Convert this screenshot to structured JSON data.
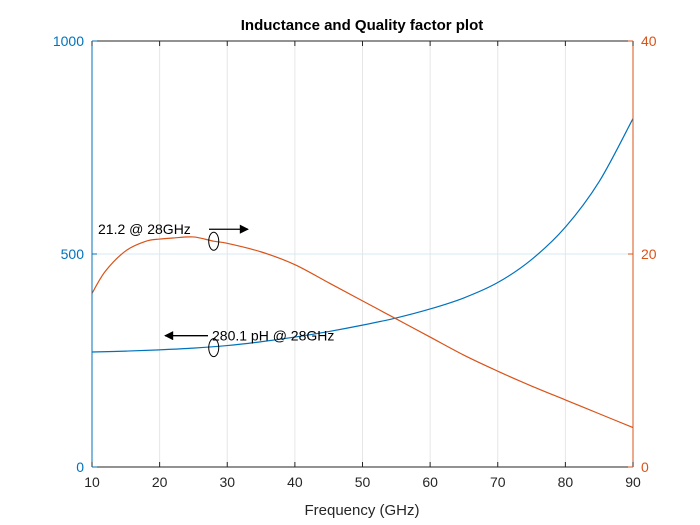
{
  "chart_data": {
    "type": "line",
    "title": "Inductance and Quality factor plot",
    "xlabel": "Frequency (GHz)",
    "xlim": [
      10,
      90
    ],
    "x_ticks": [
      10,
      20,
      30,
      40,
      50,
      60,
      70,
      80,
      90
    ],
    "y_left": {
      "lim": [
        0,
        1000
      ],
      "ticks": [
        0,
        500,
        1000
      ],
      "color": "#0072BD"
    },
    "y_right": {
      "lim": [
        0,
        40
      ],
      "ticks": [
        0,
        20,
        40
      ],
      "color": "#D95319"
    },
    "grid": "x-only",
    "series": [
      {
        "axis": "left",
        "color": "#0072BD",
        "x": [
          10,
          15,
          20,
          25,
          30,
          35,
          40,
          45,
          50,
          55,
          60,
          65,
          70,
          75,
          80,
          85,
          90
        ],
        "y": [
          270,
          272,
          275,
          279,
          285,
          294,
          305,
          318,
          333,
          350,
          371,
          397,
          433,
          487,
          563,
          670,
          818
        ]
      },
      {
        "axis": "right",
        "color": "#D95319",
        "x": [
          10,
          12,
          15,
          18,
          20,
          22,
          25,
          28,
          30,
          35,
          40,
          45,
          50,
          55,
          60,
          65,
          70,
          75,
          80,
          85,
          90
        ],
        "y": [
          16.3,
          18.4,
          20.3,
          21.2,
          21.4,
          21.5,
          21.6,
          21.2,
          21.0,
          20.2,
          19.0,
          17.3,
          15.6,
          13.9,
          12.2,
          10.5,
          9.0,
          7.6,
          6.3,
          5.0,
          3.7
        ]
      }
    ],
    "annotations": [
      {
        "text": "21.2 @ 28GHz",
        "x": 28,
        "axis": "right",
        "value": 21.2,
        "arrow": "right"
      },
      {
        "text": "280.1 pH @ 28GHz",
        "x": 28,
        "axis": "left",
        "value": 280.1,
        "arrow": "left"
      }
    ]
  }
}
